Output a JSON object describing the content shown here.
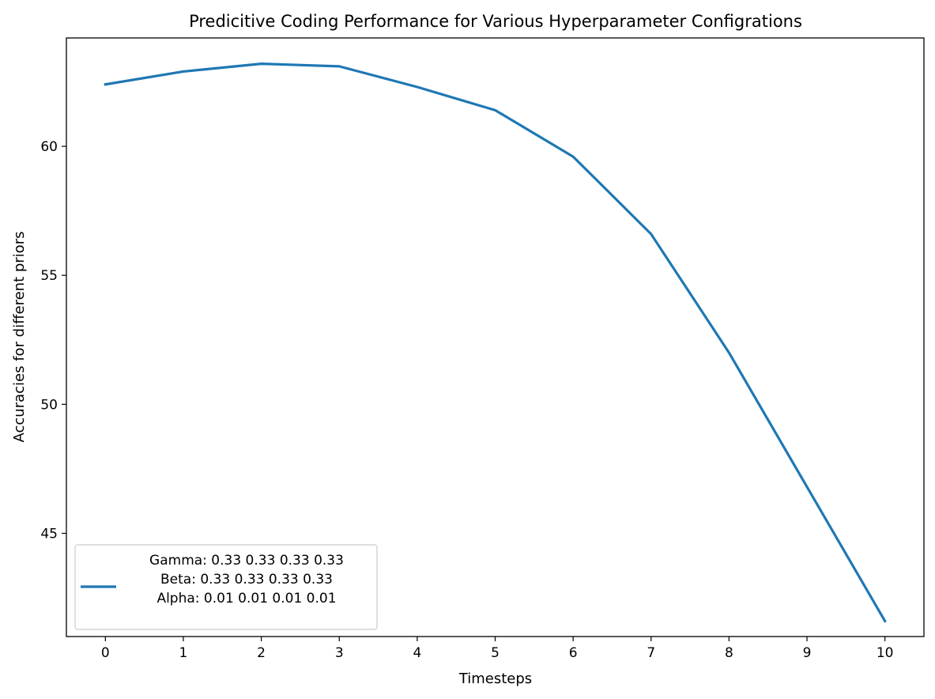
{
  "chart_data": {
    "type": "line",
    "title": "Predicitive Coding Performance for Various Hyperparameter Configrations",
    "xlabel": "Timesteps",
    "ylabel": "Accuracies for different priors",
    "xlim": [
      -0.5,
      10.5
    ],
    "ylim": [
      41.0,
      64.2
    ],
    "xticks": [
      0,
      1,
      2,
      3,
      4,
      5,
      6,
      7,
      8,
      9,
      10
    ],
    "yticks": [
      45,
      50,
      55,
      60
    ],
    "grid": false,
    "legend_position": "lower-left",
    "series": [
      {
        "name": "Gamma: 0.33 0.33 0.33 0.33\n Beta: 0.33 0.33 0.33 0.33\n Alpha: 0.01 0.01 0.01 0.01",
        "legend_lines": [
          "Gamma: 0.33 0.33 0.33 0.33",
          "Beta: 0.33 0.33 0.33 0.33",
          "Alpha: 0.01 0.01 0.01 0.01"
        ],
        "color": "#1f77b4",
        "x": [
          0,
          1,
          2,
          3,
          4,
          5,
          6,
          7,
          8,
          9,
          10
        ],
        "y": [
          62.4,
          62.9,
          63.2,
          63.1,
          62.3,
          61.4,
          59.6,
          56.6,
          52.0,
          46.8,
          41.6
        ]
      }
    ]
  }
}
